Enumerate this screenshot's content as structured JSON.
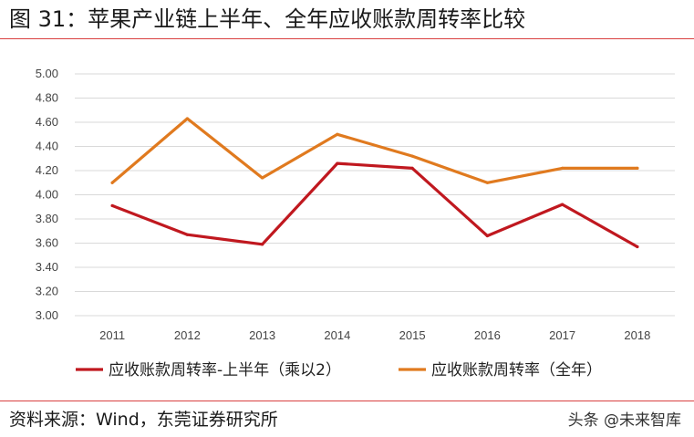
{
  "header": {
    "title": "图 31：苹果产业链上半年、全年应收账款周转率比较"
  },
  "footer": {
    "source": "资料来源：Wind，东莞证券研究所",
    "watermark": "头条 @未来智库"
  },
  "chart_data": {
    "type": "line",
    "title": "",
    "xlabel": "",
    "ylabel": "",
    "categories": [
      "2011",
      "2012",
      "2013",
      "2014",
      "2015",
      "2016",
      "2017",
      "2018"
    ],
    "ylim": [
      3.0,
      5.0
    ],
    "yticks": [
      "3.00",
      "3.20",
      "3.40",
      "3.60",
      "3.80",
      "4.00",
      "4.20",
      "4.40",
      "4.60",
      "4.80",
      "5.00"
    ],
    "grid": true,
    "legend_position": "bottom",
    "series": [
      {
        "name": "应收账款周转率-上半年（乘以2）",
        "color": "#c0181f",
        "values": [
          3.91,
          3.67,
          3.59,
          4.26,
          4.22,
          3.66,
          3.92,
          3.57
        ]
      },
      {
        "name": "应收账款周转率（全年）",
        "color": "#e07a1f",
        "values": [
          4.1,
          4.63,
          4.14,
          4.5,
          4.32,
          4.1,
          4.22,
          4.22
        ]
      }
    ]
  }
}
